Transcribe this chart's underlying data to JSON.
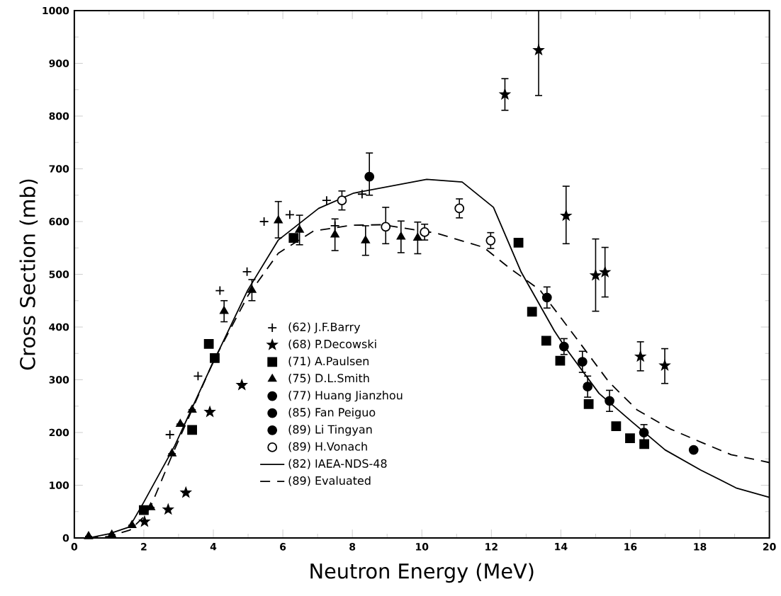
{
  "chart_data": {
    "type": "scatter",
    "xlabel": "Neutron Energy (MeV)",
    "ylabel": "Cross Section (mb)",
    "xlim": [
      0,
      20
    ],
    "ylim": [
      0,
      1000
    ],
    "xticks": [
      0,
      2,
      4,
      6,
      8,
      10,
      12,
      14,
      16,
      18,
      20
    ],
    "yticks": [
      0,
      100,
      200,
      300,
      400,
      500,
      600,
      700,
      800,
      900,
      1000
    ],
    "legend": "center",
    "series": [
      {
        "name": "(62) J.F.Barry",
        "color": "#000000",
        "marker": "cross",
        "x": [
          2.75,
          3.56,
          4.19,
          4.97,
          5.46,
          6.2,
          7.26,
          7.5,
          8.28
        ],
        "values": [
          196,
          307,
          469,
          505,
          600,
          613,
          640,
          592,
          652
        ]
      },
      {
        "name": "(68) P.Decowski",
        "color": "#000000",
        "marker": "star",
        "x": [
          2.02,
          2.7,
          3.21,
          3.9,
          4.82,
          12.39,
          13.36,
          14.15,
          15.0,
          15.27,
          16.29,
          16.99
        ],
        "values": [
          31,
          54,
          86,
          239,
          290,
          841,
          925,
          611,
          498,
          504,
          344,
          327
        ],
        "errors": [
          null,
          null,
          null,
          null,
          null,
          30,
          [
            839,
            1000
          ],
          [
            558,
            667
          ],
          [
            430,
            567
          ],
          47,
          [
            317,
            372
          ],
          [
            293,
            359
          ]
        ]
      },
      {
        "name": "(71) A.Paulsen",
        "color": "#000000",
        "marker": "square",
        "x": [
          2.0,
          3.39,
          3.87,
          4.04,
          6.31,
          12.78,
          13.17,
          13.58,
          13.98,
          14.8,
          15.59,
          15.99,
          16.4
        ],
        "values": [
          53,
          205,
          368,
          341,
          569,
          560,
          429,
          374,
          336,
          254,
          212,
          189,
          178
        ]
      },
      {
        "name": "(75) D.L.Smith",
        "color": "#000000",
        "marker": "triangle",
        "x": [
          0.41,
          1.08,
          1.66,
          2.2,
          2.81,
          3.05,
          3.39,
          4.31,
          5.11,
          5.87,
          6.48,
          7.5,
          8.38,
          9.4,
          9.88
        ],
        "values": [
          3,
          6,
          24,
          58,
          160,
          216,
          243,
          430,
          470,
          602,
          584,
          575,
          564,
          571,
          569
        ],
        "errors": [
          null,
          null,
          null,
          null,
          null,
          null,
          null,
          20,
          20,
          [
            569,
            638
          ],
          28,
          30,
          28,
          30,
          30
        ]
      },
      {
        "name": "(77) Huang Jianzhou",
        "color": "#000000",
        "marker": "circle",
        "x": [
          8.49,
          13.6,
          14.62,
          16.39
        ],
        "values": [
          685,
          456,
          334,
          200
        ],
        "errors": [
          [
            650,
            730
          ],
          20,
          20,
          15
        ]
      },
      {
        "name": "(85) Fan Peiguo",
        "color": "#000000",
        "marker": "circle",
        "x": [
          14.09,
          15.4
        ],
        "values": [
          363,
          260
        ],
        "errors": [
          15,
          20
        ]
      },
      {
        "name": "(89) Li Tingyan",
        "color": "#000000",
        "marker": "circle",
        "x": [
          14.77,
          17.82
        ],
        "values": [
          287,
          167
        ],
        "errors": [
          20,
          null
        ]
      },
      {
        "name": "(89) H.Vonach",
        "color": "#ffffff",
        "marker": "circle",
        "x": [
          7.7,
          8.96,
          10.08,
          11.08,
          11.98
        ],
        "values": [
          640,
          590,
          580,
          625,
          564
        ],
        "errors": [
          18,
          [
            558,
            627
          ],
          15,
          18,
          15
        ]
      },
      {
        "name": "(82) IAEA-NDS-48",
        "type": "line",
        "color": "#000000",
        "line_style": "solid",
        "x": [
          0.4,
          1.0,
          1.59,
          2.0,
          2.89,
          3.83,
          4.99,
          5.87,
          7.03,
          8.04,
          10.14,
          11.16,
          12.06,
          12.86,
          13.81,
          14.15,
          15.1,
          16.05,
          17.0,
          18.02,
          19.04,
          20.0
        ],
        "values": [
          0,
          8,
          21,
          68,
          175,
          310,
          470,
          565,
          625,
          654,
          680,
          675,
          627,
          504,
          393,
          359,
          274,
          220,
          167,
          129,
          95,
          77
        ]
      },
      {
        "name": "(89) Evaluated",
        "type": "line",
        "color": "#000000",
        "line_style": "dashed",
        "x": [
          0.4,
          1.0,
          1.6,
          2.0,
          2.2,
          2.8,
          3.5,
          4.0,
          5.0,
          5.87,
          6.88,
          7.98,
          8.86,
          10.42,
          11.78,
          12.46,
          13.4,
          14.42,
          15.38,
          16.19,
          17.14,
          18.09,
          18.9,
          19.72,
          20.0
        ],
        "values": [
          0,
          3,
          15,
          40,
          60,
          155,
          260,
          335,
          460,
          540,
          582,
          593,
          594,
          578,
          551,
          515,
          470,
          381,
          296,
          243,
          207,
          180,
          158,
          147,
          143
        ]
      }
    ]
  }
}
